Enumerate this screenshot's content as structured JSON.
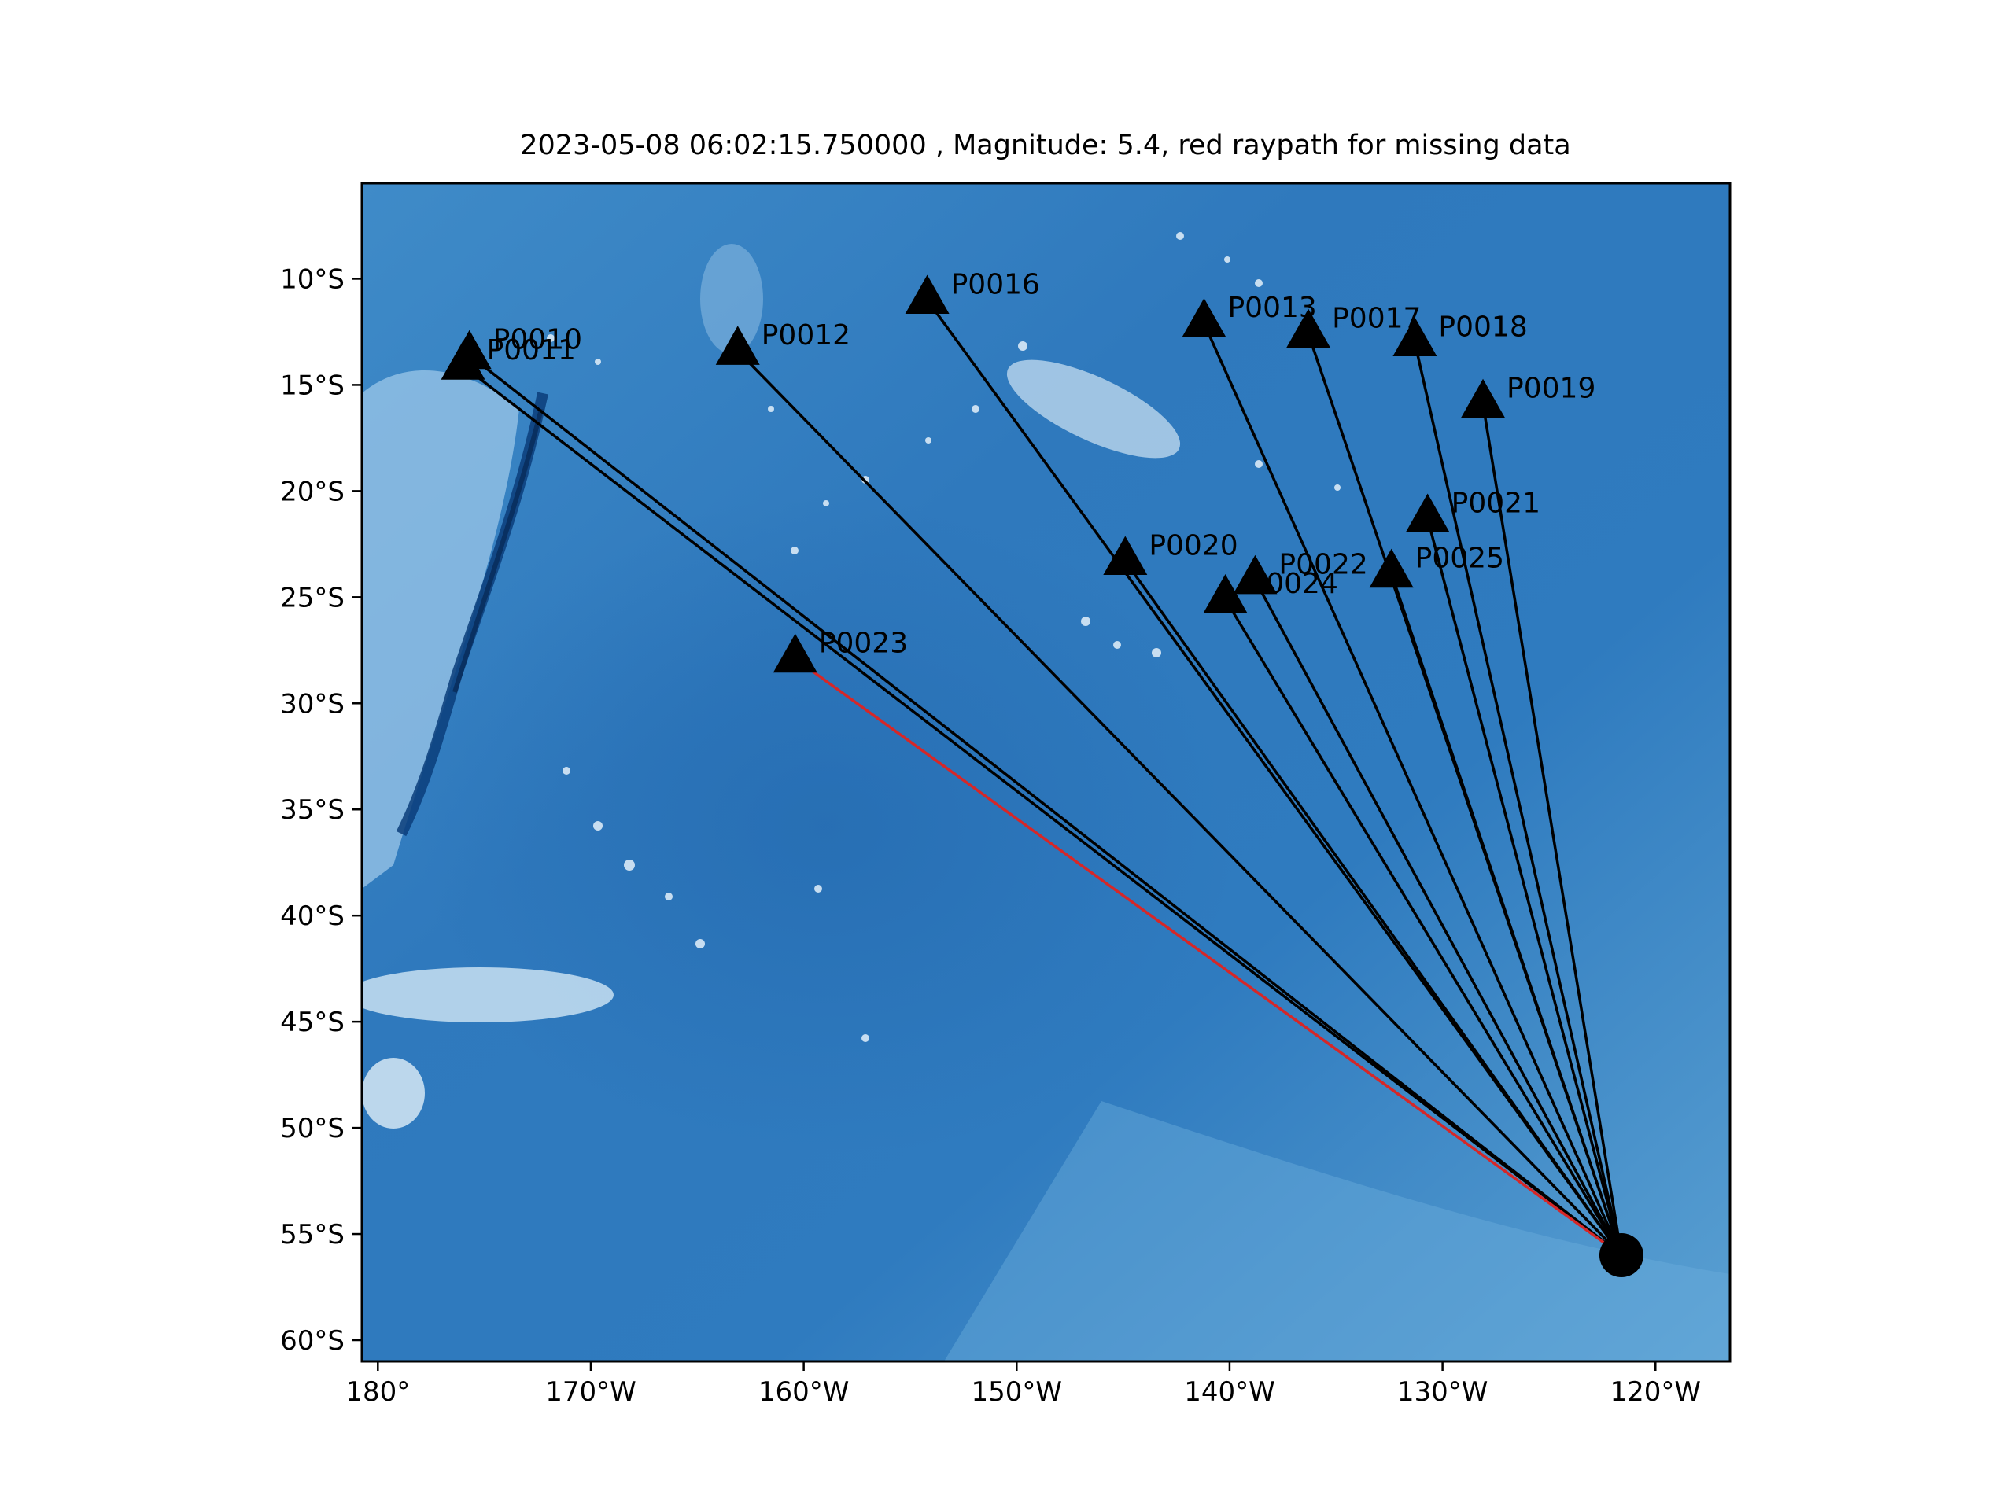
{
  "title": "2023-05-08 06:02:15.750000 , Magnitude: 5.4, red raypath for missing data",
  "chart_data": {
    "type": "map",
    "projection": "plate-carree",
    "xlim": [
      -180.75,
      -116.5
    ],
    "ylim": [
      -61.0,
      -5.5
    ],
    "x_ticks": [
      {
        "value": -180,
        "label": "180°"
      },
      {
        "value": -170,
        "label": "170°W"
      },
      {
        "value": -160,
        "label": "160°W"
      },
      {
        "value": -150,
        "label": "150°W"
      },
      {
        "value": -140,
        "label": "140°W"
      },
      {
        "value": -130,
        "label": "130°W"
      },
      {
        "value": -120,
        "label": "120°W"
      }
    ],
    "y_ticks": [
      {
        "value": -10,
        "label": "10°S"
      },
      {
        "value": -15,
        "label": "15°S"
      },
      {
        "value": -20,
        "label": "20°S"
      },
      {
        "value": -25,
        "label": "25°S"
      },
      {
        "value": -30,
        "label": "30°S"
      },
      {
        "value": -35,
        "label": "35°S"
      },
      {
        "value": -40,
        "label": "40°S"
      },
      {
        "value": -45,
        "label": "45°S"
      },
      {
        "value": -50,
        "label": "50°S"
      },
      {
        "value": -55,
        "label": "55°S"
      },
      {
        "value": -60,
        "label": "60°S"
      }
    ],
    "event": {
      "lon": -121.6,
      "lat": -56.0,
      "marker": "circle",
      "color": "#000000"
    },
    "stations": [
      {
        "name": "P0010",
        "lon": -175.7,
        "lat": -13.6,
        "missing": false
      },
      {
        "name": "P0011",
        "lon": -176.0,
        "lat": -14.1,
        "missing": false
      },
      {
        "name": "P0012",
        "lon": -163.1,
        "lat": -13.4,
        "missing": false
      },
      {
        "name": "P0016",
        "lon": -154.2,
        "lat": -11.0,
        "missing": false
      },
      {
        "name": "P0013",
        "lon": -141.2,
        "lat": -12.1,
        "missing": false
      },
      {
        "name": "P0017",
        "lon": -136.3,
        "lat": -12.6,
        "missing": false
      },
      {
        "name": "P0018",
        "lon": -131.3,
        "lat": -13.0,
        "missing": false
      },
      {
        "name": "P0019",
        "lon": -128.1,
        "lat": -15.9,
        "missing": false
      },
      {
        "name": "P0021",
        "lon": -130.7,
        "lat": -21.3,
        "missing": false
      },
      {
        "name": "P0020",
        "lon": -144.9,
        "lat": -23.3,
        "missing": false
      },
      {
        "name": "P0022",
        "lon": -138.8,
        "lat": -24.2,
        "missing": false
      },
      {
        "name": "P0024",
        "lon": -140.2,
        "lat": -25.1,
        "missing": false
      },
      {
        "name": "P0025",
        "lon": -132.4,
        "lat": -23.9,
        "missing": false
      },
      {
        "name": "P0023",
        "lon": -160.4,
        "lat": -27.9,
        "missing": true
      }
    ],
    "raypath_color": "#000000",
    "missing_raypath_color": "#d62728",
    "station_marker": "triangle",
    "background": "ocean bathymetry (blues colormap)"
  }
}
